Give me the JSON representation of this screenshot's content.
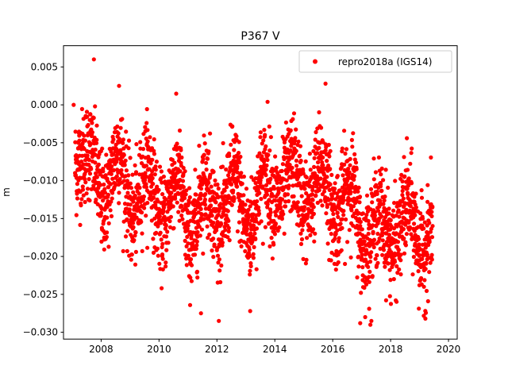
{
  "chart_data": {
    "type": "scatter",
    "title": "P367 V",
    "xlabel": "",
    "ylabel": "m",
    "xlim": [
      2006.7,
      2020.3
    ],
    "ylim": [
      -0.0309,
      0.0078
    ],
    "x_ticks": [
      2008,
      2010,
      2012,
      2014,
      2016,
      2018,
      2020
    ],
    "x_tick_labels": [
      "2008",
      "2010",
      "2012",
      "2014",
      "2016",
      "2018",
      "2020"
    ],
    "y_ticks": [
      0.005,
      0.0,
      -0.005,
      -0.01,
      -0.015,
      -0.02,
      -0.025,
      -0.03
    ],
    "y_tick_labels": [
      "0.005",
      "0.000",
      "−0.005",
      "−0.010",
      "−0.015",
      "−0.020",
      "−0.025",
      "−0.030"
    ],
    "grid": false,
    "legend_position": "top-right",
    "series": [
      {
        "name": "repro2018a (IGS14)",
        "color": "#ff0000",
        "marker": "circle",
        "x_range": [
          2007.1,
          2019.45
        ],
        "trend_x": [
          2007.1,
          2007.6,
          2008.1,
          2008.6,
          2009.1,
          2009.6,
          2010.1,
          2010.6,
          2011.1,
          2011.6,
          2012.1,
          2012.6,
          2013.1,
          2013.6,
          2014.1,
          2014.6,
          2015.1,
          2015.6,
          2016.1,
          2016.6,
          2017.1,
          2017.6,
          2018.1,
          2018.6,
          2019.1,
          2019.45
        ],
        "trend_y": [
          -0.008,
          -0.006,
          -0.013,
          -0.006,
          -0.015,
          -0.008,
          -0.016,
          -0.009,
          -0.018,
          -0.01,
          -0.016,
          -0.009,
          -0.017,
          -0.009,
          -0.013,
          -0.008,
          -0.014,
          -0.008,
          -0.015,
          -0.01,
          -0.019,
          -0.014,
          -0.019,
          -0.013,
          -0.02,
          -0.016
        ],
        "spread": 0.0032,
        "outliers": [
          {
            "x": 2007.75,
            "y": 0.006
          },
          {
            "x": 2008.62,
            "y": 0.0025
          },
          {
            "x": 2015.75,
            "y": 0.0028
          },
          {
            "x": 2011.45,
            "y": -0.0275
          },
          {
            "x": 2013.15,
            "y": -0.0272
          },
          {
            "x": 2017.3,
            "y": -0.029
          },
          {
            "x": 2019.2,
            "y": -0.0282
          },
          {
            "x": 2013.75,
            "y": 0.0004
          },
          {
            "x": 2007.05,
            "y": 0.0
          },
          {
            "x": 2016.95,
            "y": -0.0288
          }
        ]
      }
    ]
  }
}
